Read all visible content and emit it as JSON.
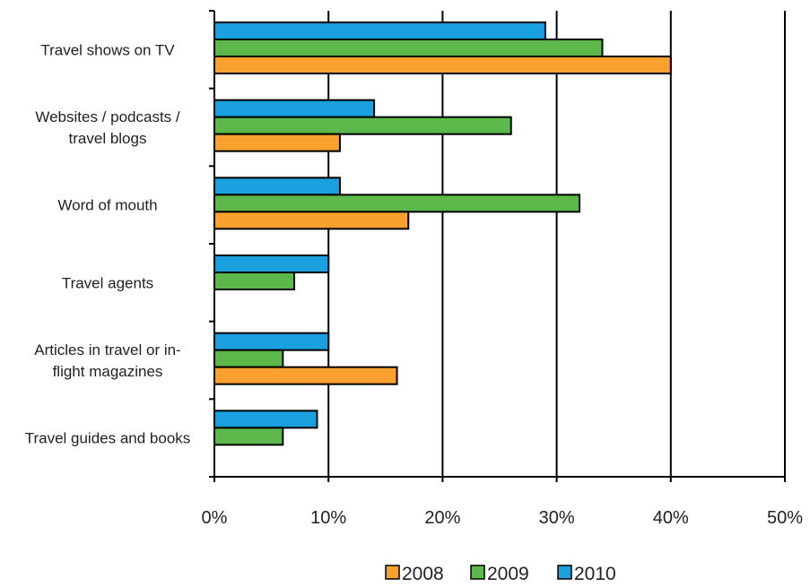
{
  "chart_data": {
    "type": "bar",
    "orientation": "horizontal",
    "categories": [
      [
        "Travel shows on TV"
      ],
      [
        "Websites / podcasts /",
        "travel blogs"
      ],
      [
        "Word of mouth"
      ],
      [
        "Travel agents"
      ],
      [
        "Articles in travel or in-",
        "flight magazines"
      ],
      [
        "Travel guides and books"
      ]
    ],
    "series": [
      {
        "name": "2008",
        "color": "#f9a12e",
        "values": [
          40,
          11,
          17,
          null,
          16,
          null
        ]
      },
      {
        "name": "2009",
        "color": "#5cb84a",
        "values": [
          34,
          26,
          32,
          7,
          6,
          6
        ]
      },
      {
        "name": "2010",
        "color": "#1a9fdf",
        "values": [
          29,
          14,
          11,
          10,
          10,
          9
        ]
      }
    ],
    "xlim": [
      0,
      50
    ],
    "xticks": [
      "0%",
      "10%",
      "20%",
      "30%",
      "40%",
      "50%"
    ],
    "grid": "vertical",
    "legend": "bottom",
    "title": "",
    "xlabel": "",
    "ylabel": ""
  }
}
